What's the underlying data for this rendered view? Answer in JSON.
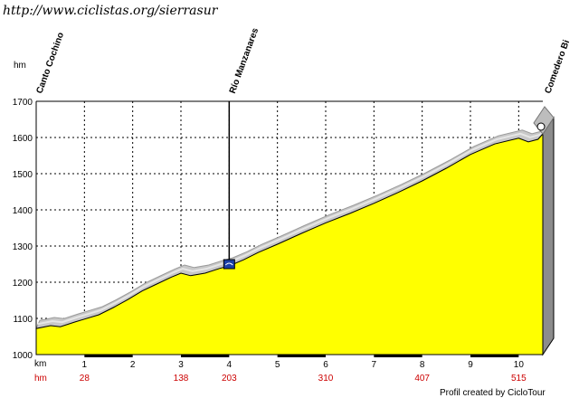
{
  "header": {
    "url": "http://www.ciclistas.org/sierrasur"
  },
  "footer": {
    "credit": "Profil created by CicloTour"
  },
  "chart_data": {
    "type": "area",
    "title": "",
    "xlabel": "km",
    "ylabel": "hm",
    "xlim": [
      0,
      10.5
    ],
    "ylim": [
      1000,
      1700
    ],
    "y_ticks": [
      1000,
      1100,
      1200,
      1300,
      1400,
      1500,
      1600,
      1700
    ],
    "x_ticks": [
      1,
      2,
      3,
      4,
      5,
      6,
      7,
      8,
      9,
      10
    ],
    "grid": true,
    "hm_row_label": "hm",
    "hm_row": [
      {
        "km": 1,
        "hm": "28"
      },
      {
        "km": 3,
        "hm": "138"
      },
      {
        "km": 4,
        "hm": "203"
      },
      {
        "km": 6,
        "hm": "310"
      },
      {
        "km": 8,
        "hm": "407"
      },
      {
        "km": 10,
        "hm": "515"
      }
    ],
    "waypoints": [
      {
        "name": "Canto Cochino",
        "km": 0
      },
      {
        "name": "Río Manzanares",
        "km": 4
      },
      {
        "name": "Comedero Bi",
        "km": 10.5
      }
    ],
    "series": [
      {
        "values": [
          [
            0.0,
            1072
          ],
          [
            0.3,
            1080
          ],
          [
            0.5,
            1077
          ],
          [
            0.8,
            1090
          ],
          [
            1.0,
            1098
          ],
          [
            1.3,
            1110
          ],
          [
            1.6,
            1130
          ],
          [
            1.9,
            1152
          ],
          [
            2.2,
            1176
          ],
          [
            2.5,
            1195
          ],
          [
            2.8,
            1214
          ],
          [
            3.0,
            1225
          ],
          [
            3.2,
            1218
          ],
          [
            3.5,
            1225
          ],
          [
            3.8,
            1238
          ],
          [
            4.0,
            1245
          ],
          [
            4.3,
            1262
          ],
          [
            4.6,
            1282
          ],
          [
            5.0,
            1305
          ],
          [
            5.5,
            1335
          ],
          [
            6.0,
            1364
          ],
          [
            6.5,
            1390
          ],
          [
            7.0,
            1418
          ],
          [
            7.5,
            1448
          ],
          [
            8.0,
            1480
          ],
          [
            8.5,
            1515
          ],
          [
            9.0,
            1553
          ],
          [
            9.5,
            1582
          ],
          [
            10.0,
            1598
          ],
          [
            10.2,
            1588
          ],
          [
            10.4,
            1595
          ],
          [
            10.5,
            1610
          ]
        ]
      }
    ]
  }
}
